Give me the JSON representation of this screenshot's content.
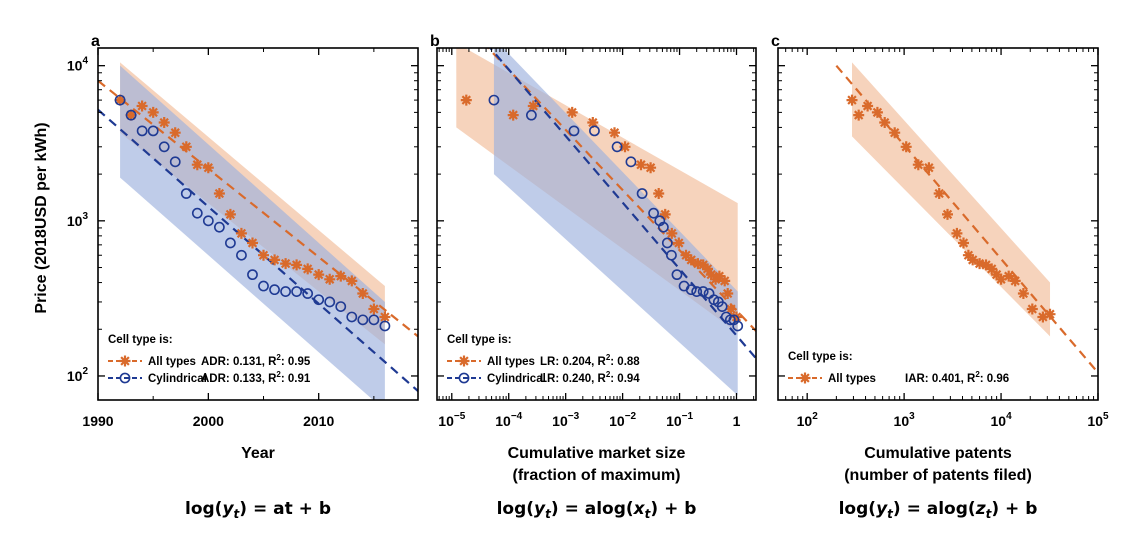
{
  "colors": {
    "all": "#d96a2b",
    "cyl": "#1f3a93",
    "all_band": "#f3c4a6",
    "cyl_band": "#9db0dd"
  },
  "y_axis": {
    "label": "Price (2018USD per kWh)",
    "scale": "log",
    "range": [
      70,
      13000
    ],
    "ticks": [
      {
        "v": 100,
        "m": "10",
        "e": "2"
      },
      {
        "v": 1000,
        "m": "10",
        "e": "3"
      },
      {
        "v": 10000,
        "m": "10",
        "e": "4"
      }
    ]
  },
  "chart_data": [
    {
      "letter": "a",
      "type": "scatter",
      "xlabel": [
        "Year"
      ],
      "xscale": "linear",
      "xlim": [
        1990,
        2019
      ],
      "xticks": [
        {
          "v": 1990,
          "t": "1990"
        },
        {
          "v": 2000,
          "t": "2000"
        },
        {
          "v": 2010,
          "t": "2010"
        }
      ],
      "formula": {
        "pre": "log(",
        "var": "y",
        "sub": "t",
        "post": ") = at + b"
      },
      "legend": {
        "title": "Cell type is:",
        "entries": [
          {
            "series": "All types",
            "name": "All types",
            "stat": "ADR: 0.131, R",
            "stat_end": ": 0.95"
          },
          {
            "series": "Cylindrical",
            "name": "Cylindrical",
            "stat": "ADR: 0.133, R",
            "stat_end": ": 0.91"
          }
        ]
      },
      "series": [
        {
          "name": "All types",
          "marker": "star",
          "x": [
            1992,
            1993,
            1994,
            1995,
            1996,
            1997,
            1998,
            1999,
            2000,
            2001,
            2002,
            2003,
            2004,
            2005,
            2006,
            2007,
            2008,
            2009,
            2010,
            2011,
            2012,
            2013,
            2014,
            2015,
            2016
          ],
          "y": [
            6000,
            4800,
            5500,
            5000,
            4300,
            3700,
            3000,
            2300,
            2200,
            1500,
            1100,
            830,
            720,
            600,
            560,
            530,
            520,
            490,
            450,
            420,
            440,
            410,
            340,
            270,
            240
          ],
          "fit": {
            "x": [
              1990,
              2019
            ],
            "y": [
              8000,
              180
            ]
          },
          "band": {
            "x": [
              1992,
              2016
            ],
            "upper": [
              10500,
              380
            ],
            "lower": [
              3700,
              160
            ]
          }
        },
        {
          "name": "Cylindrical",
          "marker": "circle",
          "x": [
            1992,
            1993,
            1994,
            1995,
            1996,
            1997,
            1998,
            1999,
            2000,
            2001,
            2002,
            2003,
            2004,
            2005,
            2006,
            2007,
            2008,
            2009,
            2010,
            2011,
            2012,
            2013,
            2014,
            2015,
            2016
          ],
          "y": [
            6000,
            4800,
            3800,
            3800,
            3000,
            2400,
            1500,
            1120,
            1000,
            910,
            720,
            600,
            450,
            380,
            360,
            350,
            350,
            340,
            310,
            300,
            280,
            240,
            230,
            230,
            210
          ],
          "fit": {
            "x": [
              1990,
              2019
            ],
            "y": [
              5200,
              80
            ]
          },
          "band": {
            "x": [
              1992,
              2016
            ],
            "upper": [
              10000,
              300
            ],
            "lower": [
              1900,
              60
            ]
          }
        }
      ]
    },
    {
      "letter": "b",
      "type": "scatter",
      "xlabel": [
        "Cumulative market size",
        "(fraction of maximum)"
      ],
      "xscale": "log",
      "xlim": [
        5.5e-06,
        2.2
      ],
      "xticks": [
        {
          "v": 1e-05,
          "m": "10",
          "e": "−5"
        },
        {
          "v": 0.0001,
          "m": "10",
          "e": "−4"
        },
        {
          "v": 0.001,
          "m": "10",
          "e": "−3"
        },
        {
          "v": 0.01,
          "m": "10",
          "e": "−2"
        },
        {
          "v": 0.1,
          "m": "10",
          "e": "−1"
        },
        {
          "v": 1,
          "m": "1",
          "e": ""
        }
      ],
      "formula": {
        "pre": "log(",
        "var": "y",
        "sub": "t",
        "post": ") = alog(",
        "var2": "x",
        "sub2": "t",
        "post2": ") + b"
      },
      "legend": {
        "title": "Cell type is:",
        "entries": [
          {
            "series": "All types",
            "name": "All types",
            "stat": "LR: 0.204, R",
            "stat_end": ": 0.88"
          },
          {
            "series": "Cylindrical",
            "name": "Cylindrical",
            "stat": "LR: 0.240, R",
            "stat_end": ": 0.94"
          }
        ]
      },
      "series": [
        {
          "name": "All types",
          "marker": "star",
          "x": [
            1.8e-05,
            0.00012,
            0.00027,
            0.0013,
            0.003,
            0.0072,
            0.011,
            0.021,
            0.031,
            0.043,
            0.056,
            0.073,
            0.097,
            0.13,
            0.16,
            0.21,
            0.26,
            0.31,
            0.36,
            0.43,
            0.5,
            0.62,
            0.7,
            0.8,
            1.0
          ],
          "y": [
            6000,
            4800,
            5500,
            5000,
            4300,
            3700,
            3000,
            2300,
            2200,
            1500,
            1100,
            830,
            720,
            600,
            560,
            530,
            520,
            490,
            450,
            420,
            440,
            410,
            340,
            270,
            240
          ],
          "fit": {
            "x": [
              1e-05,
              2.2
            ],
            "y": [
              23000,
              195
            ]
          },
          "band": {
            "x": [
              1.2e-05,
              1.05
            ],
            "upper": [
              14000,
              1300
            ],
            "lower": [
              4000,
              190
            ]
          }
        },
        {
          "name": "Cylindrical",
          "marker": "circle",
          "x": [
            5.5e-05,
            0.00025,
            0.0014,
            0.0032,
            0.008,
            0.014,
            0.022,
            0.035,
            0.045,
            0.052,
            0.061,
            0.072,
            0.09,
            0.12,
            0.16,
            0.2,
            0.26,
            0.33,
            0.4,
            0.48,
            0.56,
            0.66,
            0.78,
            0.9,
            1.05
          ],
          "y": [
            6000,
            4800,
            3800,
            3800,
            3000,
            2400,
            1500,
            1120,
            1000,
            910,
            720,
            600,
            450,
            380,
            360,
            350,
            350,
            340,
            310,
            300,
            280,
            240,
            230,
            230,
            210
          ],
          "fit": {
            "x": [
              4e-05,
              2.2
            ],
            "y": [
              14000,
              130
            ]
          },
          "band": {
            "x": [
              5.5e-05,
              1.05
            ],
            "upper": [
              15000,
              350
            ],
            "lower": [
              2000,
              75
            ]
          }
        }
      ]
    },
    {
      "letter": "c",
      "type": "scatter",
      "xlabel": [
        "Cumulative patents",
        "(number of patents filed)"
      ],
      "xscale": "log",
      "xlim": [
        50,
        100000
      ],
      "xticks": [
        {
          "v": 100,
          "m": "10",
          "e": "2"
        },
        {
          "v": 1000,
          "m": "10",
          "e": "3"
        },
        {
          "v": 10000,
          "m": "10",
          "e": "4"
        },
        {
          "v": 100000,
          "m": "10",
          "e": "5"
        }
      ],
      "formula": {
        "pre": "log(",
        "var": "y",
        "sub": "t",
        "post": ") = alog(",
        "var2": "z",
        "sub2": "t",
        "post2": ") + b"
      },
      "legend": {
        "title": "Cell type is:",
        "entries": [
          {
            "series": "All types",
            "name": "All types",
            "stat": "IAR: 0.401, R",
            "stat_end": ": 0.96"
          }
        ]
      },
      "series": [
        {
          "name": "All types",
          "marker": "star",
          "x": [
            290,
            340,
            420,
            530,
            630,
            800,
            1050,
            1400,
            1800,
            2300,
            2800,
            3500,
            4100,
            4600,
            5100,
            6000,
            7000,
            8000,
            9000,
            10000,
            12000,
            14000,
            17000,
            21000,
            27000,
            32000
          ],
          "y": [
            6000,
            4800,
            5500,
            5000,
            4300,
            3700,
            3000,
            2300,
            2200,
            1500,
            1100,
            830,
            720,
            600,
            560,
            530,
            520,
            490,
            450,
            420,
            440,
            410,
            340,
            270,
            240,
            250
          ],
          "fit": {
            "x": [
              200,
              100000
            ],
            "y": [
              10000,
              105
            ]
          },
          "band": {
            "x": [
              290,
              32000
            ],
            "upper": [
              10500,
              400
            ],
            "lower": [
              3500,
              180
            ]
          }
        }
      ]
    }
  ]
}
